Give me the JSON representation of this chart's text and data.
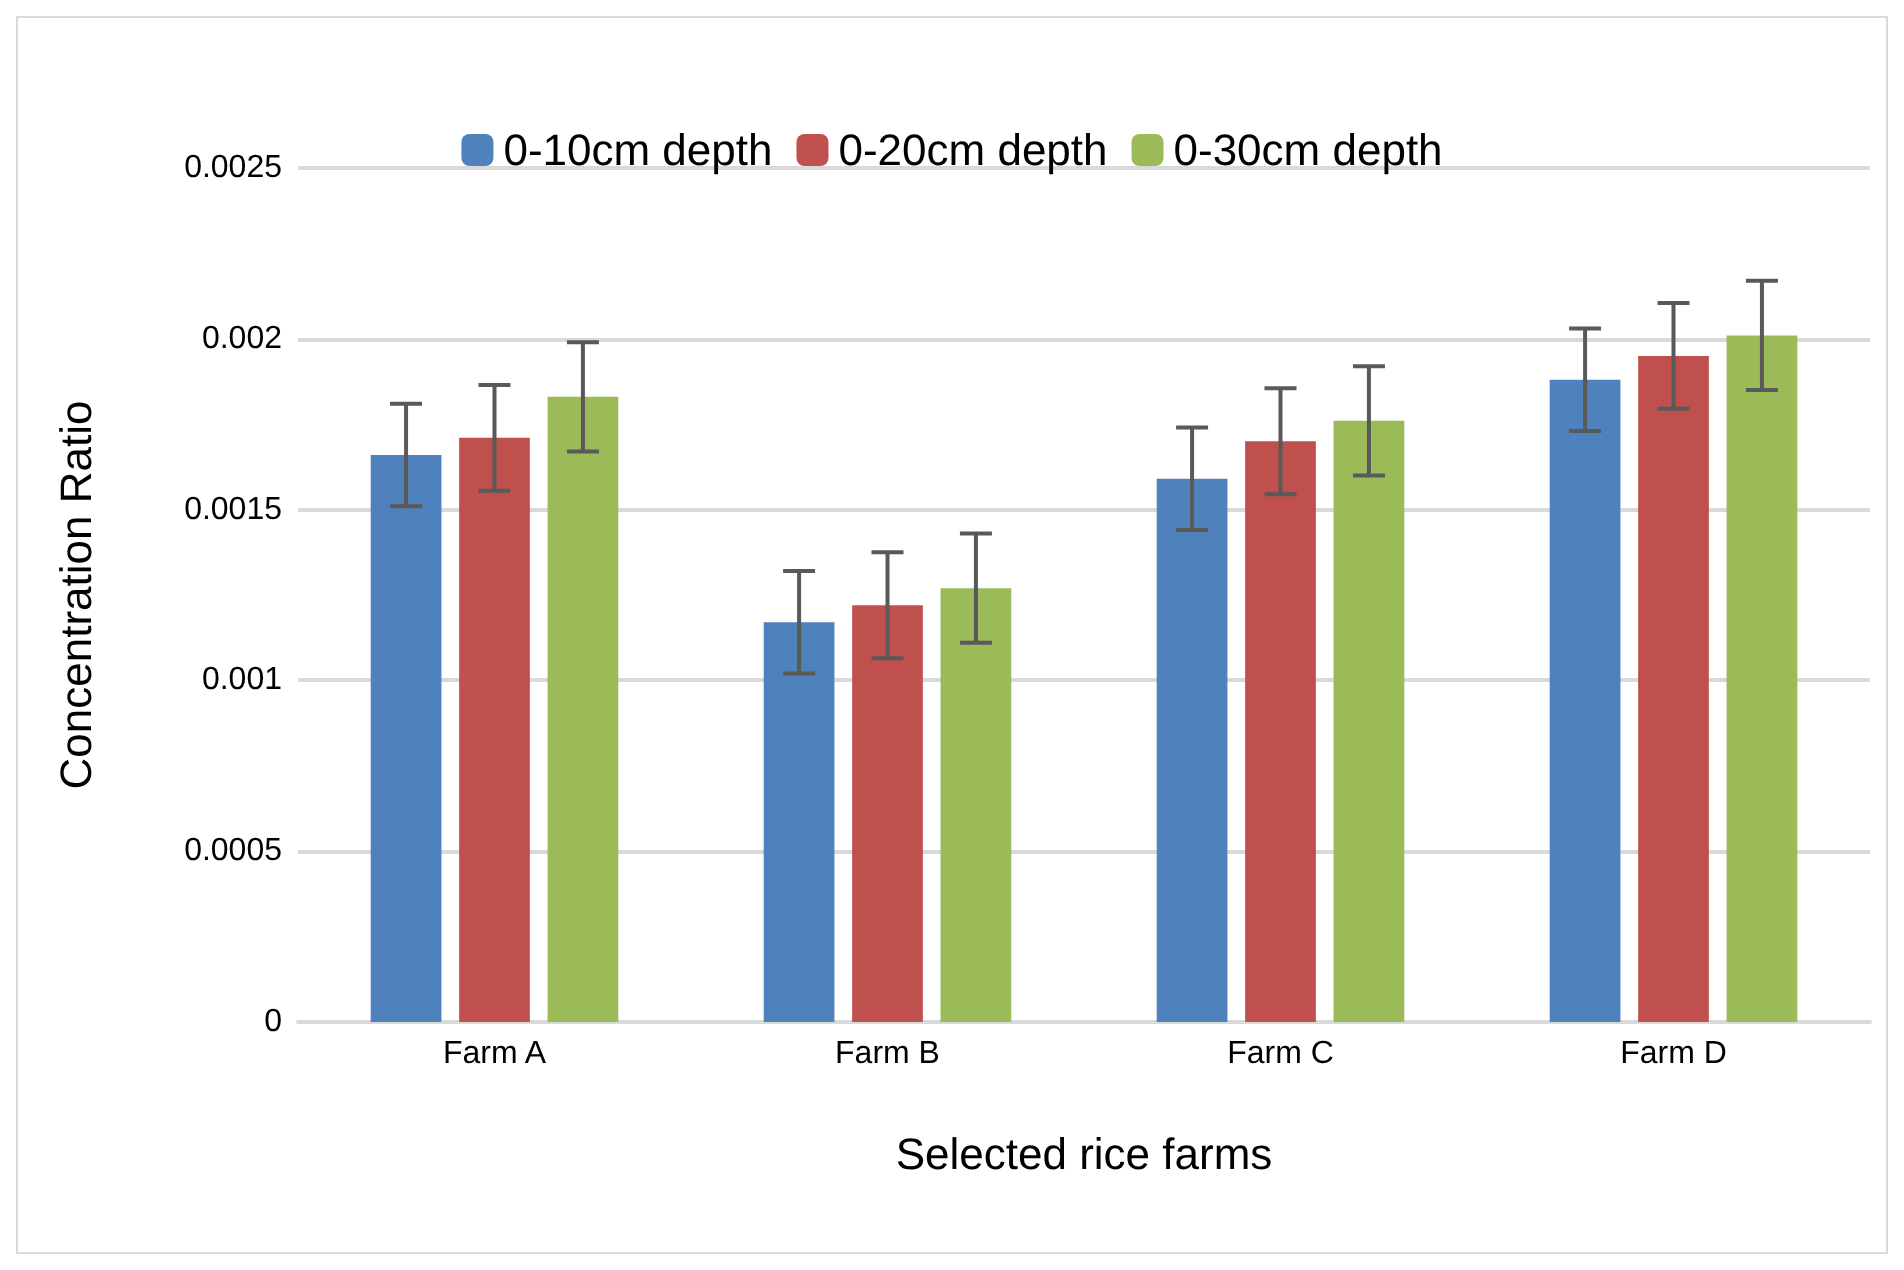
{
  "chart_data": {
    "type": "bar",
    "xlabel": "Selected rice farms",
    "ylabel": "Concentration Ratio",
    "categories": [
      "Farm A",
      "Farm B",
      "Farm C",
      "Farm D"
    ],
    "series": [
      {
        "name": "0-10cm depth",
        "color": "#4f81bd",
        "values": [
          0.00166,
          0.00117,
          0.00159,
          0.00188
        ],
        "errors": [
          0.00015,
          0.00015,
          0.00015,
          0.00015
        ]
      },
      {
        "name": "0-20cm depth",
        "color": "#c0504d",
        "values": [
          0.00171,
          0.00122,
          0.0017,
          0.00195
        ],
        "errors": [
          0.000155,
          0.000155,
          0.000155,
          0.000155
        ]
      },
      {
        "name": "0-30cm depth",
        "color": "#9bbb59",
        "values": [
          0.00183,
          0.00127,
          0.00176,
          0.00201
        ],
        "errors": [
          0.00016,
          0.00016,
          0.00016,
          0.00016
        ]
      }
    ],
    "ylim": [
      0,
      0.0025
    ],
    "yticks": [
      0,
      0.0005,
      0.001,
      0.0015,
      0.002,
      0.0025
    ],
    "grid": "y",
    "legend": "top"
  }
}
